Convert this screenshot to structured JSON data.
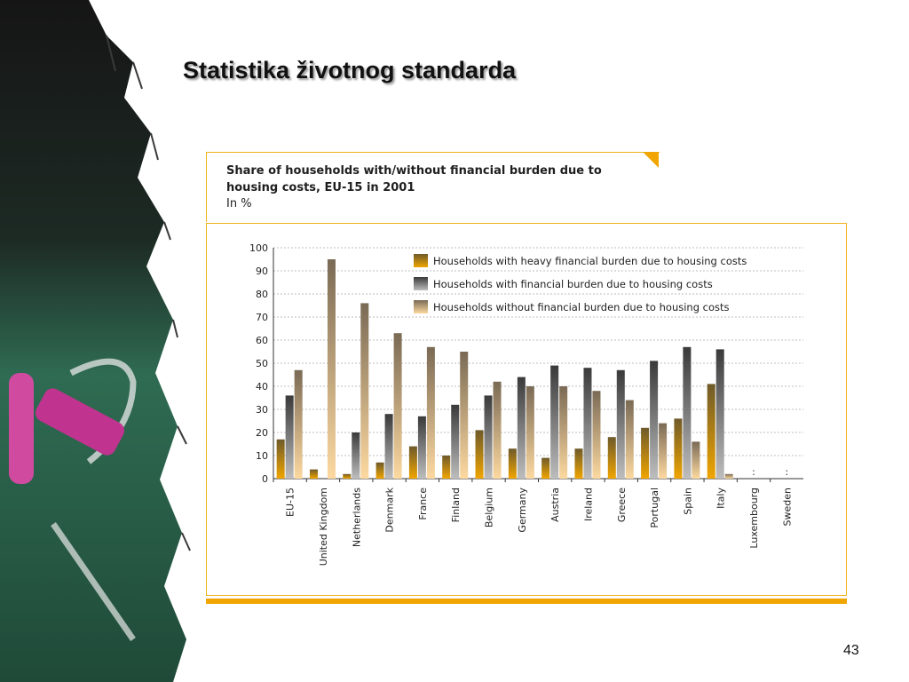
{
  "slide": {
    "title": "Statistika životnog standarda",
    "page_number": "43"
  },
  "colors": {
    "heavy": "#f0a500",
    "burden": "#bdbdbd",
    "without": "#fdd9a0",
    "frame": "#f0b21b"
  },
  "chart_data": {
    "type": "bar",
    "title": "Share of households with/without financial burden due to housing costs, EU-15 in 2001",
    "subtitle": "In %",
    "xlabel": "",
    "ylabel": "",
    "ylim": [
      0,
      100
    ],
    "yticks": [
      "0",
      "10",
      "20",
      "30",
      "40",
      "50",
      "60",
      "70",
      "80",
      "90",
      "100"
    ],
    "grid": true,
    "legend": "top-right",
    "categories": [
      "EU-15",
      "United Kingdom",
      "Netherlands",
      "Denmark",
      "France",
      "Finland",
      "Belgium",
      "Germany",
      "Austria",
      "Ireland",
      "Greece",
      "Portugal",
      "Spain",
      "Italy",
      "Luxembourg",
      "Sweden"
    ],
    "missing_marker": ":",
    "missing_categories": [
      "Luxembourg",
      "Sweden"
    ],
    "series": [
      {
        "name": "Households with heavy financial burden due to housing costs",
        "values": [
          17,
          4,
          2,
          7,
          14,
          10,
          21,
          13,
          9,
          13,
          18,
          22,
          26,
          41,
          null,
          null
        ]
      },
      {
        "name": "Households with financial burden due to housing costs",
        "values": [
          36,
          null,
          20,
          28,
          27,
          32,
          36,
          44,
          49,
          48,
          47,
          51,
          57,
          56,
          null,
          null
        ]
      },
      {
        "name": "Households without financial burden due to housing costs",
        "values": [
          47,
          95,
          76,
          63,
          57,
          55,
          42,
          40,
          40,
          38,
          34,
          24,
          16,
          2,
          null,
          null
        ]
      }
    ]
  }
}
